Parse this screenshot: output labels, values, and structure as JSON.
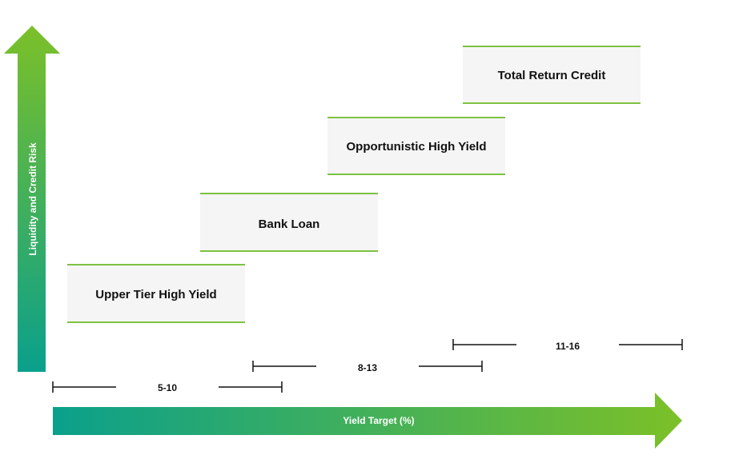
{
  "y_axis_label": "Liquidity and Credit Risk",
  "x_axis_label": "Yield Target (%)",
  "boxes": [
    {
      "label": "Upper Tier High Yield"
    },
    {
      "label": "Bank Loan"
    },
    {
      "label": "Opportunistic High Yield"
    },
    {
      "label": "Total Return Credit"
    }
  ],
  "ranges": [
    {
      "label": "5-10"
    },
    {
      "label": "8-13"
    },
    {
      "label": "11-16"
    }
  ]
}
